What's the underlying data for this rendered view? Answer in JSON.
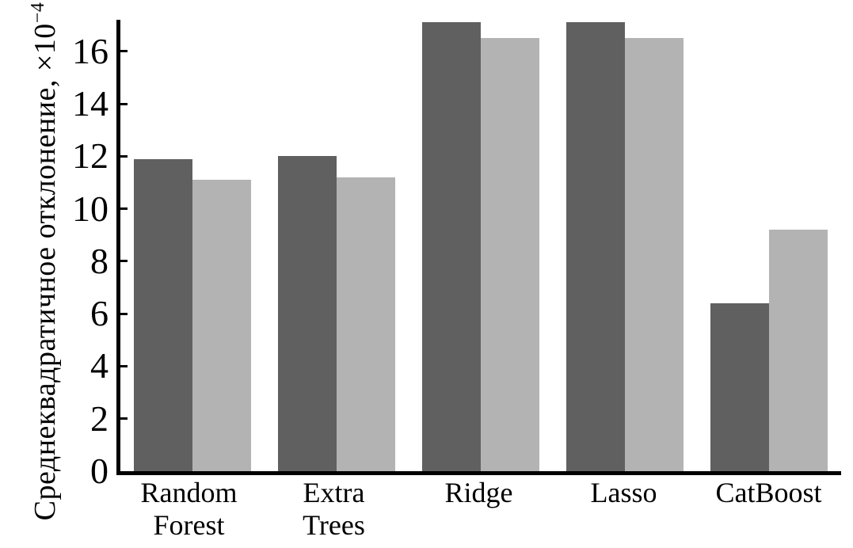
{
  "chart_data": {
    "type": "bar",
    "title": "",
    "categories": [
      "Random Forest",
      "Extra Trees",
      "Ridge",
      "Lasso",
      "CatBoost"
    ],
    "category_label_lines": [
      [
        "Random",
        "Forest"
      ],
      [
        "Extra",
        "Trees"
      ],
      [
        "Ridge"
      ],
      [
        "Lasso"
      ],
      [
        "CatBoost"
      ]
    ],
    "series": [
      {
        "name": "dark",
        "color": "#606060",
        "values": [
          11.9,
          12.0,
          17.1,
          17.1,
          6.4
        ]
      },
      {
        "name": "light",
        "color": "#b3b3b3",
        "values": [
          11.1,
          11.2,
          16.5,
          16.5,
          9.2
        ]
      }
    ],
    "xlabel": "",
    "ylabel": "Среднеквадратичное отклонение, ×10⁻⁴",
    "ylabel_main": "Среднеквадратичное отклонение, ×10",
    "ylabel_exponent": "−4",
    "yticks": [
      0,
      2,
      4,
      6,
      8,
      10,
      12,
      14,
      16
    ],
    "ylim": [
      0,
      17.2
    ],
    "grid": false,
    "legend_position": "none"
  },
  "colors": {
    "background": "#ffffff",
    "axis": "#000000",
    "bar_dark": "#606060",
    "bar_light": "#b3b3b3"
  }
}
